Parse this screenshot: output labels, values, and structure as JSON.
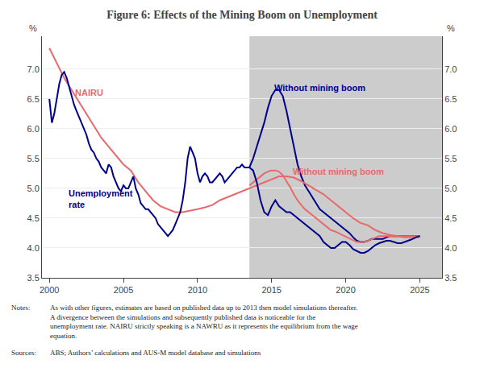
{
  "chart_data": {
    "type": "line",
    "title": "Figure 6: Effects of the Mining Boom on Unemployment",
    "xlim": [
      1999.5,
      2026.5
    ],
    "xticks": [
      2000,
      2005,
      2010,
      2015,
      2020,
      2025
    ],
    "ylim": [
      3.5,
      7.55
    ],
    "yticks": [
      3.5,
      {
        "value": 4.0,
        "label": "4.0"
      },
      4.5,
      {
        "value": 5.0,
        "label": "5.0"
      },
      5.5,
      {
        "value": 6.0,
        "label": "6.0"
      },
      6.5,
      {
        "value": 7.0,
        "label": "7.0"
      }
    ],
    "y2lim": [
      3.5,
      7.55
    ],
    "y2ticks": [
      3.5,
      {
        "value": 4.0,
        "label": "4.0"
      },
      4.5,
      {
        "value": 5.0,
        "label": "5.0"
      },
      5.5,
      {
        "value": 6.0,
        "label": "6.0"
      },
      6.5,
      {
        "value": 7.0,
        "label": "7.0"
      }
    ],
    "ylabel": "%",
    "y2label": "%",
    "grid": true,
    "shade": {
      "x": [
        2013.5,
        2026.5
      ],
      "color": "#cccccc"
    },
    "series": [
      {
        "color": "#00008B",
        "x": [
          2013.5,
          2013.75,
          2014.0,
          2014.25,
          2014.5,
          2014.75,
          2015.0,
          2015.25,
          2015.5,
          2015.75,
          2016.0,
          2016.25,
          2016.5,
          2016.75,
          2017.0,
          2017.25,
          2017.5,
          2017.75,
          2018.0,
          2018.25,
          2018.5,
          2018.75,
          2019.0,
          2019.25,
          2019.5,
          2019.75,
          2020.0,
          2020.25,
          2020.5,
          2020.75,
          2021.0,
          2021.25,
          2021.5,
          2021.75,
          2022.0,
          2022.25,
          2022.5,
          2022.75,
          2023.0,
          2023.25,
          2023.5,
          2023.75,
          2024.0,
          2024.25,
          2024.5,
          2024.75,
          2025.0
        ],
        "values": [
          5.35,
          5.5,
          5.7,
          5.9,
          6.1,
          6.35,
          6.55,
          6.65,
          6.65,
          6.55,
          6.3,
          6.0,
          5.7,
          5.4,
          5.2,
          5.05,
          4.95,
          4.85,
          4.75,
          4.65,
          4.6,
          4.55,
          4.5,
          4.45,
          4.4,
          4.35,
          4.3,
          4.25,
          4.18,
          4.12,
          4.1,
          4.1,
          4.12,
          4.15,
          4.15,
          4.15,
          4.15,
          4.18,
          4.2,
          4.2,
          4.2,
          4.2,
          4.2,
          4.2,
          4.2,
          4.2,
          4.2
        ]
      },
      {
        "color": "#E8696B",
        "x": [
          2013.5,
          2013.75,
          2014.0,
          2014.25,
          2014.5,
          2014.75,
          2015.0,
          2015.25,
          2015.5,
          2015.75,
          2016.0,
          2016.25,
          2016.5,
          2016.75,
          2017.0,
          2017.25,
          2017.5,
          2017.75,
          2018.0,
          2018.25,
          2018.5,
          2018.75,
          2019.0,
          2019.25,
          2019.5,
          2019.75,
          2020.0,
          2020.25,
          2020.5,
          2020.75,
          2021.0,
          2021.25,
          2021.5,
          2021.75,
          2022.0,
          2022.25,
          2022.5,
          2022.75,
          2023.0,
          2023.25,
          2023.5,
          2023.75,
          2024.0,
          2024.25,
          2024.5,
          2024.75,
          2025.0
        ],
        "values": [
          5.05,
          5.1,
          5.15,
          5.2,
          5.25,
          5.28,
          5.3,
          5.3,
          5.28,
          5.22,
          5.12,
          5.02,
          4.9,
          4.8,
          4.72,
          4.65,
          4.6,
          4.55,
          4.5,
          4.45,
          4.4,
          4.35,
          4.3,
          4.28,
          4.25,
          4.22,
          4.18,
          4.15,
          4.12,
          4.1,
          4.1,
          4.1,
          4.12,
          4.15,
          4.18,
          4.2,
          4.2,
          4.2,
          4.2,
          4.2,
          4.2,
          4.2,
          4.2,
          4.2,
          4.2,
          4.2,
          4.2
        ]
      },
      {
        "color": "#E8696B",
        "x": [
          2000.0,
          2000.5,
          2001.0,
          2001.5,
          2002.0,
          2002.5,
          2003.0,
          2003.5,
          2004.0,
          2004.5,
          2005.0,
          2005.5,
          2006.0,
          2006.5,
          2007.0,
          2007.5,
          2008.0,
          2008.5,
          2009.0,
          2009.5,
          2010.0,
          2010.5,
          2011.0,
          2011.5,
          2012.0,
          2012.5,
          2013.0,
          2013.5,
          2014.0,
          2014.5,
          2015.0,
          2015.5,
          2016.0,
          2016.5,
          2017.0,
          2017.5,
          2018.0,
          2018.5,
          2019.0,
          2019.5,
          2020.0,
          2020.5,
          2021.0,
          2021.5,
          2022.0,
          2022.5,
          2023.0,
          2023.5,
          2024.0,
          2024.5,
          2025.0
        ],
        "values": [
          7.35,
          7.1,
          6.85,
          6.65,
          6.45,
          6.25,
          6.05,
          5.85,
          5.7,
          5.55,
          5.4,
          5.3,
          5.1,
          4.95,
          4.8,
          4.7,
          4.65,
          4.6,
          4.6,
          4.62,
          4.65,
          4.68,
          4.72,
          4.8,
          4.85,
          4.9,
          4.95,
          5.0,
          5.05,
          5.1,
          5.15,
          5.2,
          5.2,
          5.18,
          5.12,
          5.05,
          4.98,
          4.9,
          4.8,
          4.7,
          4.6,
          4.5,
          4.42,
          4.38,
          4.3,
          4.25,
          4.22,
          4.2,
          4.18,
          4.18,
          4.18
        ]
      },
      {
        "color": "#00008B",
        "x": [
          2000.0,
          2000.17,
          2000.33,
          2000.5,
          2000.67,
          2000.83,
          2001.0,
          2001.17,
          2001.33,
          2001.5,
          2001.67,
          2001.83,
          2002.0,
          2002.17,
          2002.33,
          2002.5,
          2002.67,
          2002.83,
          2003.0,
          2003.17,
          2003.33,
          2003.5,
          2003.67,
          2003.83,
          2004.0,
          2004.17,
          2004.33,
          2004.5,
          2004.67,
          2004.83,
          2005.0,
          2005.17,
          2005.33,
          2005.5,
          2005.67,
          2005.83,
          2006.0,
          2006.17,
          2006.33,
          2006.5,
          2006.67,
          2006.83,
          2007.0,
          2007.17,
          2007.33,
          2007.5,
          2007.67,
          2007.83,
          2008.0,
          2008.17,
          2008.33,
          2008.5,
          2008.67,
          2008.83,
          2009.0,
          2009.17,
          2009.33,
          2009.5,
          2009.67,
          2009.83,
          2010.0,
          2010.17,
          2010.33,
          2010.5,
          2010.67,
          2010.83,
          2011.0,
          2011.17,
          2011.33,
          2011.5,
          2011.67,
          2011.83,
          2012.0,
          2012.17,
          2012.33,
          2012.5,
          2012.67,
          2012.83,
          2013.0,
          2013.17,
          2013.33,
          2013.5
        ],
        "values": [
          6.5,
          6.1,
          6.25,
          6.5,
          6.75,
          6.9,
          6.95,
          6.85,
          6.7,
          6.55,
          6.4,
          6.3,
          6.2,
          6.1,
          6.0,
          5.9,
          5.75,
          5.65,
          5.6,
          5.5,
          5.45,
          5.35,
          5.3,
          5.25,
          5.4,
          5.35,
          5.2,
          5.1,
          5.0,
          4.95,
          5.05,
          5.0,
          5.0,
          5.1,
          5.2,
          5.0,
          4.9,
          4.75,
          4.7,
          4.65,
          4.65,
          4.6,
          4.55,
          4.5,
          4.4,
          4.35,
          4.3,
          4.25,
          4.2,
          4.25,
          4.3,
          4.4,
          4.5,
          4.6,
          4.8,
          5.1,
          5.5,
          5.7,
          5.6,
          5.5,
          5.25,
          5.1,
          5.2,
          5.25,
          5.2,
          5.1,
          5.1,
          5.15,
          5.2,
          5.25,
          5.2,
          5.1,
          5.15,
          5.2,
          5.25,
          5.3,
          5.35,
          5.35,
          5.4,
          5.35,
          5.35,
          5.35
        ]
      },
      {
        "color": "#00008B",
        "x": [
          2013.5,
          2013.75,
          2014.0,
          2014.25,
          2014.5,
          2014.75,
          2015.0,
          2015.25,
          2015.5,
          2015.75,
          2016.0,
          2016.25,
          2016.5,
          2016.75,
          2017.0,
          2017.25,
          2017.5,
          2017.75,
          2018.0,
          2018.25,
          2018.5,
          2018.75,
          2019.0,
          2019.25,
          2019.5,
          2019.75,
          2020.0,
          2020.25,
          2020.5,
          2020.75,
          2021.0,
          2021.25,
          2021.5,
          2021.75,
          2022.0,
          2022.25,
          2022.5,
          2022.75,
          2023.0,
          2023.25,
          2023.5,
          2023.75,
          2024.0,
          2024.25,
          2024.5,
          2024.75,
          2025.0
        ],
        "values": [
          5.35,
          5.3,
          5.1,
          4.8,
          4.6,
          4.55,
          4.7,
          4.8,
          4.7,
          4.65,
          4.6,
          4.6,
          4.55,
          4.5,
          4.45,
          4.4,
          4.35,
          4.3,
          4.25,
          4.2,
          4.1,
          4.05,
          4.0,
          4.0,
          4.05,
          4.1,
          4.1,
          4.05,
          3.98,
          3.95,
          3.92,
          3.92,
          3.95,
          4.0,
          4.05,
          4.08,
          4.1,
          4.12,
          4.12,
          4.1,
          4.08,
          4.08,
          4.1,
          4.12,
          4.15,
          4.18,
          4.2
        ]
      }
    ],
    "annotations": [
      {
        "text": "NAIRU",
        "x": 2001.6,
        "y": 6.5,
        "color": "#E8696B"
      },
      {
        "text": "Unemployment\nrate",
        "x": 2001.2,
        "y": 4.62,
        "color": "#00008B"
      },
      {
        "text": "Without mining boom",
        "x": 2015.05,
        "y": 6.58,
        "color": "#00008B"
      },
      {
        "text": "Without mining boom",
        "x": 2016.3,
        "y": 5.18,
        "color": "#E8696B"
      }
    ],
    "notes": {
      "label": "Notes:",
      "lines": [
        "As with other figures, estimates are based on published data up to 2013 then model simulations thereafter.",
        "A divergence between the simulations and subsequently published data is noticeable for the",
        "unemployment rate. NAIRU strictly speaking is a NAWRU as it represents the equilibrium from the wage",
        "equation."
      ]
    },
    "sources": {
      "label": "Sources:",
      "text": "ABS; Authors’ calculations and AUS-M model database and simulations"
    }
  }
}
